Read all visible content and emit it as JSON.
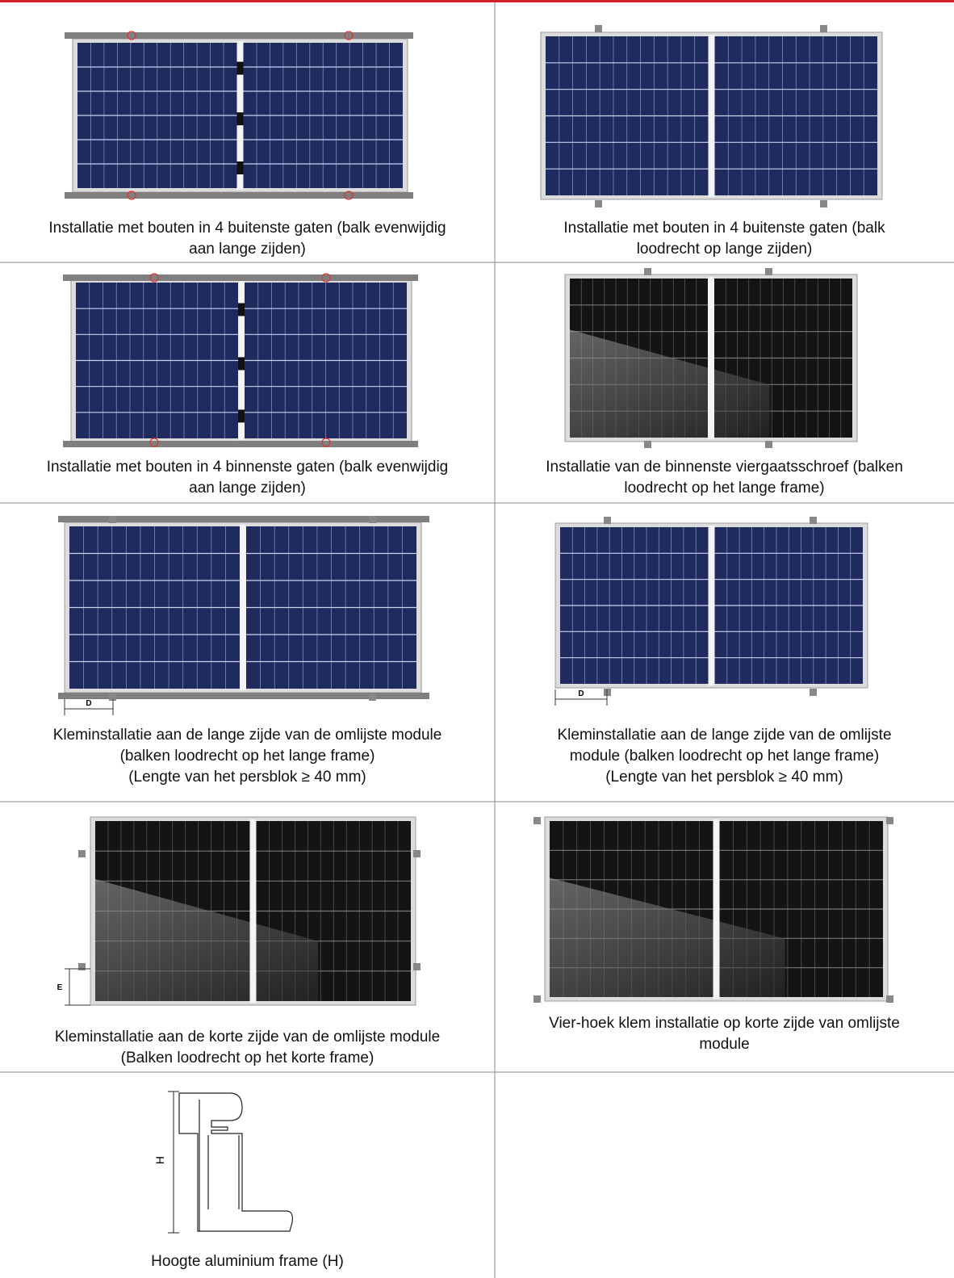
{
  "cells": [
    {
      "caption": [
        "Installatie met bouten in 4 buitenste gaten (balk evenwijdig",
        "aan lange zijden)"
      ]
    },
    {
      "caption": [
        "Installatie met bouten in 4 buitenste gaten (balk",
        "loodrecht op lange zijden)"
      ]
    },
    {
      "caption": [
        "Installatie met bouten in 4 binnenste gaten (balk evenwijdig",
        "aan lange zijden)"
      ]
    },
    {
      "caption": [
        "Installatie van de binnenste viergaatsschroef (balken",
        "loodrecht op het lange frame)"
      ]
    },
    {
      "caption": [
        "Kleminstallatie aan de lange zijde van de omlijste module",
        "(balken loodrecht op het lange frame)",
        "(Lengte van het persblok ≥ 40 mm)"
      ],
      "label": "D"
    },
    {
      "caption": [
        "Kleminstallatie aan de lange zijde van de omlijste",
        "module (balken loodrecht op het lange frame)",
        "(Lengte van het persblok ≥ 40 mm)"
      ],
      "label": "D"
    },
    {
      "caption": [
        "Kleminstallatie aan de korte zijde van de omlijste module",
        "(Balken loodrecht op het korte frame)"
      ],
      "label": "E"
    },
    {
      "caption": [
        "Vier-hoek klem installatie op korte zijde van omlijste",
        "module"
      ]
    },
    {
      "caption": [
        "Hoogte aluminium frame (H)"
      ],
      "label": "H"
    }
  ]
}
